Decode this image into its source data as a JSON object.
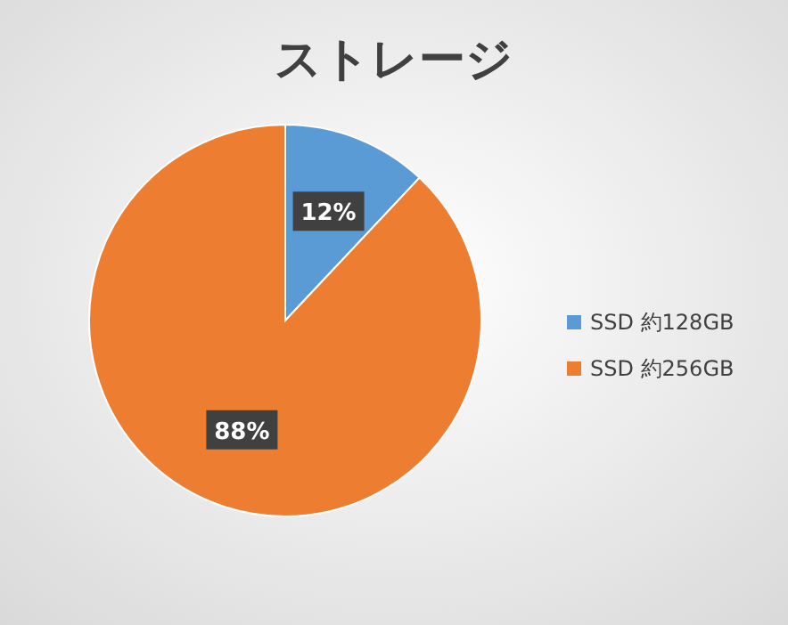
{
  "chart_data": {
    "type": "pie",
    "title": "ストレージ",
    "categories": [
      "SSD 約128GB",
      "SSD 約256GB"
    ],
    "values": [
      12,
      88
    ],
    "colors": [
      "#5b9bd5",
      "#ed7d31"
    ],
    "value_labels": [
      "12%",
      "88%"
    ],
    "legend": "right"
  }
}
